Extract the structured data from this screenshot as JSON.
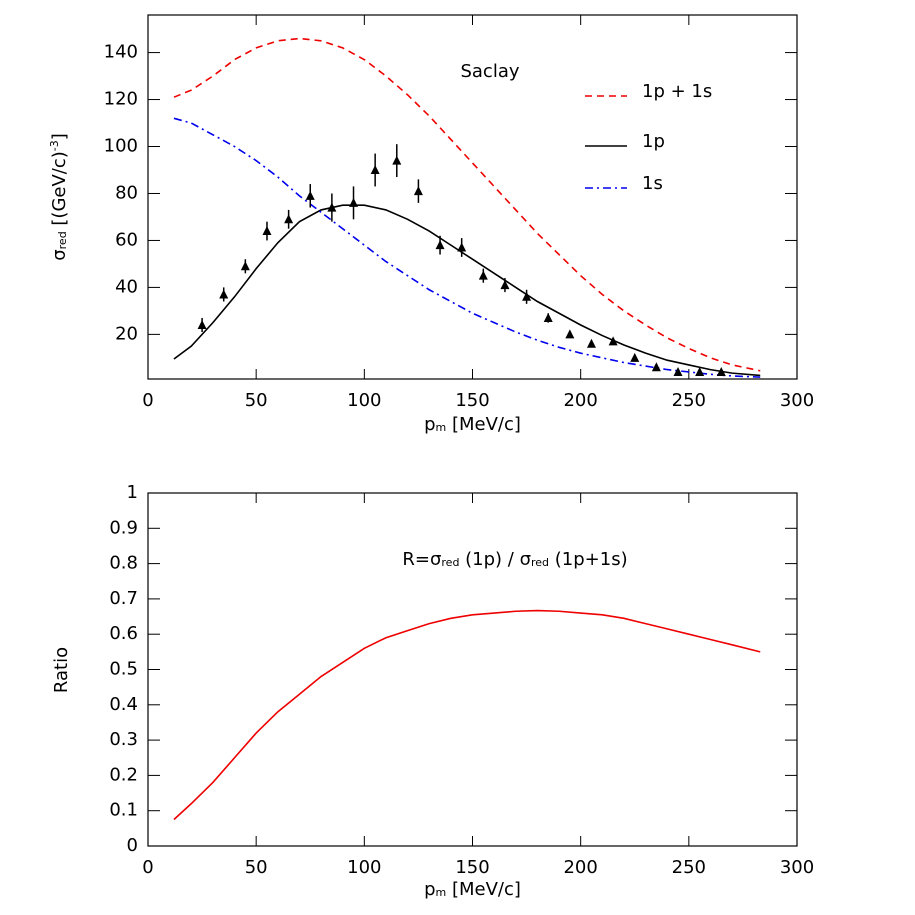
{
  "chart_data": [
    {
      "type": "line",
      "annotation": "Saclay",
      "annotation_color": "#e020e0",
      "xlabel": [
        {
          "text": "p"
        },
        {
          "text": "m",
          "pos": "sub"
        },
        {
          "text": " [MeV/c]"
        }
      ],
      "ylabel": [
        {
          "text": "σ"
        },
        {
          "text": "red",
          "pos": "sub"
        },
        {
          "text": " [(GeV/c)"
        },
        {
          "text": "-3",
          "pos": "sup"
        },
        {
          "text": "]"
        }
      ],
      "xlim": [
        0,
        300
      ],
      "ylim": [
        1,
        156
      ],
      "xticks": [
        0,
        50,
        100,
        150,
        200,
        250,
        300
      ],
      "yticks": [
        20,
        40,
        60,
        80,
        100,
        120,
        140
      ],
      "series": [
        {
          "name": "1p + 1s",
          "color": "#ee0000",
          "dash": "7 5",
          "x": [
            12,
            20,
            30,
            40,
            50,
            60,
            70,
            80,
            90,
            100,
            110,
            120,
            130,
            140,
            150,
            160,
            170,
            180,
            190,
            200,
            210,
            220,
            230,
            240,
            250,
            260,
            270,
            283
          ],
          "values": [
            121,
            124,
            130,
            137,
            142,
            145,
            146,
            145,
            142,
            137,
            130,
            122,
            113,
            103,
            93,
            83,
            73,
            63,
            54,
            45,
            37,
            30,
            24,
            18.5,
            14,
            10,
            7,
            4.5
          ]
        },
        {
          "name": "1p",
          "color": "#000000",
          "dash": "",
          "x": [
            12,
            20,
            30,
            40,
            50,
            60,
            70,
            80,
            90,
            100,
            110,
            120,
            130,
            140,
            150,
            160,
            170,
            180,
            190,
            200,
            210,
            220,
            230,
            240,
            250,
            260,
            270,
            283
          ],
          "values": [
            9.5,
            15,
            25,
            36,
            48,
            59,
            68,
            73,
            75,
            75,
            73,
            69,
            64,
            58,
            52,
            46,
            40,
            34,
            29,
            24,
            19.5,
            15.5,
            12,
            9,
            7,
            5,
            3.5,
            2.5
          ]
        },
        {
          "name": "1s",
          "color": "#0000ee",
          "dash": "8 4 2 4",
          "x": [
            12,
            20,
            30,
            40,
            50,
            60,
            70,
            80,
            90,
            100,
            110,
            120,
            130,
            140,
            150,
            160,
            170,
            180,
            190,
            200,
            210,
            220,
            230,
            240,
            250,
            260,
            270,
            283
          ],
          "values": [
            112,
            110,
            105,
            100,
            94,
            87,
            79,
            72,
            65,
            58,
            51,
            45,
            39,
            34,
            29,
            25,
            21,
            17.5,
            14.5,
            12,
            10,
            8,
            6.5,
            5,
            4,
            3,
            2.3,
            1.8
          ]
        }
      ],
      "points": {
        "color": "#000000",
        "x": [
          25,
          35,
          45,
          55,
          65,
          75,
          85,
          95,
          105,
          115,
          125,
          135,
          145,
          155,
          165,
          175,
          185,
          195,
          205,
          215,
          225,
          235,
          245,
          255,
          265
        ],
        "values": [
          24,
          37,
          49,
          64,
          69,
          79,
          74,
          76,
          90,
          94,
          81,
          58,
          57,
          45,
          41,
          36,
          27,
          20,
          16,
          17,
          10,
          6,
          4,
          4,
          4
        ],
        "errors": [
          3,
          3,
          3,
          4,
          4,
          5,
          6,
          7,
          7,
          7,
          5,
          4,
          4,
          3,
          3,
          3,
          2,
          1.5,
          1,
          1,
          1,
          1,
          0.5,
          0.5,
          0.5
        ]
      }
    },
    {
      "type": "line",
      "annotation": [
        {
          "text": "R=σ"
        },
        {
          "text": "red",
          "pos": "sub"
        },
        {
          "text": " (1p) / σ"
        },
        {
          "text": "red",
          "pos": "sub"
        },
        {
          "text": " (1p+1s)"
        }
      ],
      "annotation_color": "#0000ee",
      "xlabel": [
        {
          "text": "p"
        },
        {
          "text": "m",
          "pos": "sub"
        },
        {
          "text": " [MeV/c]"
        }
      ],
      "ylabel": [
        {
          "text": "Ratio"
        }
      ],
      "xlim": [
        0,
        300
      ],
      "ylim": [
        0,
        1
      ],
      "xticks": [
        0,
        50,
        100,
        150,
        200,
        250,
        300
      ],
      "yticks": [
        0,
        0.1,
        0.2,
        0.3,
        0.4,
        0.5,
        0.6,
        0.7,
        0.8,
        0.9,
        1
      ],
      "series": [
        {
          "color": "#ee0000",
          "dash": "",
          "x": [
            12,
            20,
            30,
            40,
            50,
            60,
            70,
            80,
            90,
            100,
            110,
            120,
            130,
            140,
            150,
            160,
            170,
            180,
            190,
            200,
            210,
            220,
            230,
            240,
            250,
            260,
            270,
            283
          ],
          "values": [
            0.075,
            0.12,
            0.18,
            0.25,
            0.32,
            0.38,
            0.43,
            0.48,
            0.52,
            0.56,
            0.59,
            0.61,
            0.63,
            0.645,
            0.655,
            0.66,
            0.665,
            0.667,
            0.665,
            0.66,
            0.655,
            0.645,
            0.63,
            0.615,
            0.6,
            0.585,
            0.57,
            0.55
          ]
        }
      ]
    }
  ]
}
